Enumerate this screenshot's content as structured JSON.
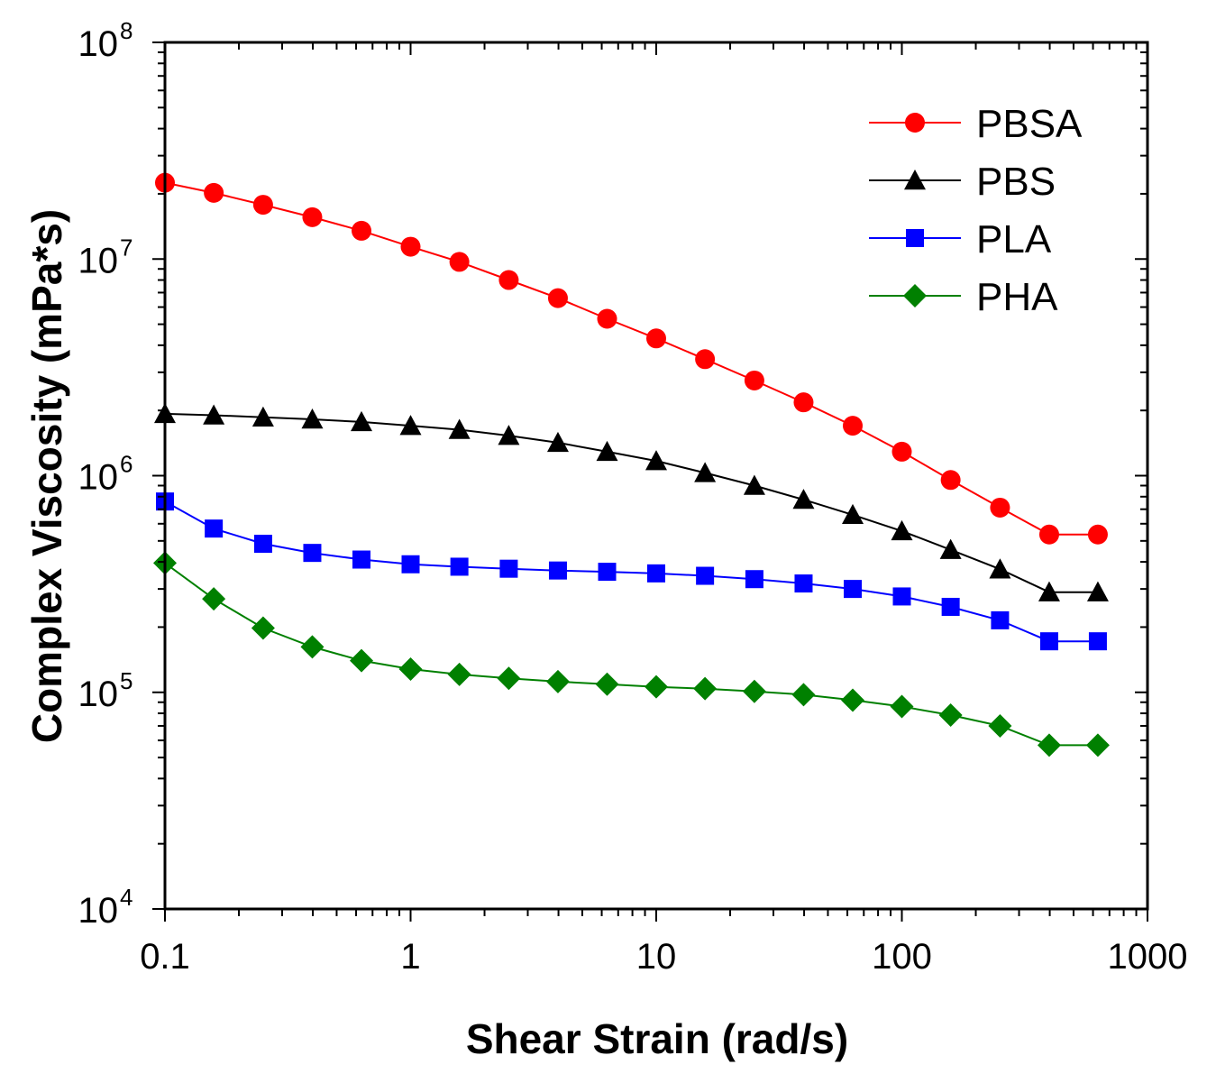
{
  "chart_data": {
    "type": "line",
    "xlabel": "Shear Strain (rad/s)",
    "ylabel": "Complex Viscosity (mPa*s)",
    "xscale": "log",
    "yscale": "log",
    "xlim": [
      0.1,
      1000
    ],
    "ylim": [
      10000,
      100000000
    ],
    "x_ticks": [
      {
        "value": 0.1,
        "label": "0.1"
      },
      {
        "value": 1,
        "label": "1"
      },
      {
        "value": 10,
        "label": "10"
      },
      {
        "value": 100,
        "label": "100"
      },
      {
        "value": 1000,
        "label": "1000"
      }
    ],
    "y_ticks": [
      {
        "value": 10000,
        "base": "10",
        "exp": "4"
      },
      {
        "value": 100000,
        "base": "10",
        "exp": "5"
      },
      {
        "value": 1000000,
        "base": "10",
        "exp": "6"
      },
      {
        "value": 10000000,
        "base": "10",
        "exp": "7"
      },
      {
        "value": 100000000,
        "base": "10",
        "exp": "8"
      }
    ],
    "grid": false,
    "legend_position": "top-right",
    "x": [
      0.1,
      0.158,
      0.251,
      0.398,
      0.631,
      1.0,
      1.58,
      2.51,
      3.98,
      6.31,
      10.0,
      15.8,
      25.1,
      39.8,
      63.1,
      100,
      158,
      251,
      398,
      628
    ],
    "series": [
      {
        "name": "PBSA",
        "color": "#ff0000",
        "marker": "circle",
        "values": [
          22500000,
          20200000,
          17800000,
          15600000,
          13500000,
          11400000,
          9700000,
          8000000,
          6600000,
          5300000,
          4300000,
          3450000,
          2750000,
          2180000,
          1700000,
          1290000,
          955000,
          712000,
          535000,
          535000
        ]
      },
      {
        "name": "PBS",
        "color": "#000000",
        "marker": "triangle",
        "values": [
          1930000,
          1900000,
          1860000,
          1820000,
          1770000,
          1700000,
          1630000,
          1530000,
          1420000,
          1290000,
          1170000,
          1030000,
          900000,
          775000,
          660000,
          555000,
          455000,
          370000,
          290000,
          290000
        ]
      },
      {
        "name": "PLA",
        "color": "#0000ff",
        "marker": "square",
        "values": [
          760000,
          570000,
          485000,
          440000,
          410000,
          390000,
          380000,
          372000,
          365000,
          360000,
          354000,
          345000,
          333000,
          318000,
          300000,
          277000,
          248000,
          215000,
          172000,
          172000
        ]
      },
      {
        "name": "PHA",
        "color": "#008000",
        "marker": "diamond",
        "values": [
          395000,
          270000,
          198000,
          162000,
          140000,
          128000,
          121000,
          116000,
          112000,
          109000,
          106000,
          104000,
          101000,
          97500,
          92000,
          86000,
          78500,
          70000,
          57000,
          57000
        ]
      }
    ]
  }
}
